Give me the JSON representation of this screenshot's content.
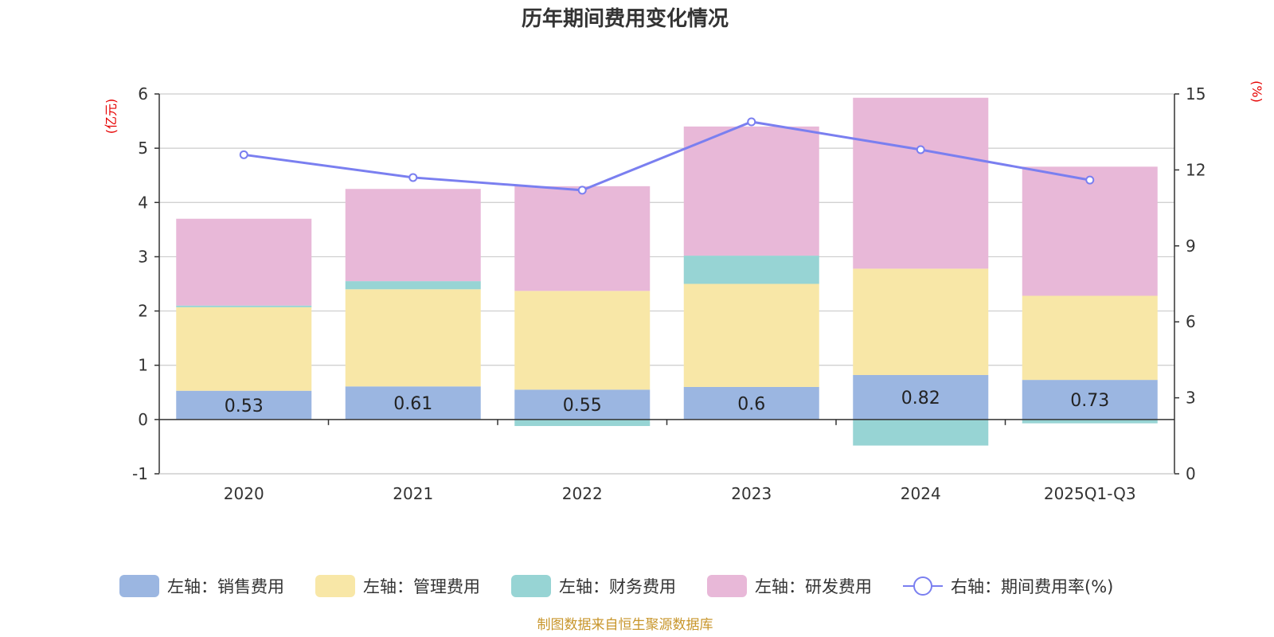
{
  "chart_data": {
    "type": "bar",
    "title": "历年期间费用变化情况",
    "categories": [
      "2020",
      "2021",
      "2022",
      "2023",
      "2024",
      "2025Q1-Q3"
    ],
    "left_axis": {
      "unit": "(亿元)",
      "ylim": [
        -1,
        6
      ],
      "ticks": [
        -1,
        0,
        1,
        2,
        3,
        4,
        5,
        6
      ]
    },
    "right_axis": {
      "unit": "(%)",
      "ylim": [
        0,
        15
      ],
      "ticks": [
        0,
        3,
        6,
        9,
        12,
        15
      ]
    },
    "series": [
      {
        "name": "左轴：销售费用",
        "type": "stacked-bar",
        "axis": "left",
        "color": "#9bb6e1",
        "values": [
          0.53,
          0.61,
          0.55,
          0.6,
          0.82,
          0.73
        ],
        "show_labels": true
      },
      {
        "name": "左轴：管理费用",
        "type": "stacked-bar",
        "axis": "left",
        "color": "#f8e7a7",
        "values": [
          1.54,
          1.79,
          1.82,
          1.9,
          1.96,
          1.55
        ]
      },
      {
        "name": "左轴：财务费用",
        "type": "stacked-bar",
        "axis": "left",
        "color": "#97d4d4",
        "values": [
          0.03,
          0.15,
          -0.12,
          0.52,
          -0.48,
          -0.07
        ]
      },
      {
        "name": "左轴：研发费用",
        "type": "stacked-bar",
        "axis": "left",
        "color": "#e8b8d8",
        "values": [
          1.6,
          1.7,
          1.93,
          2.38,
          3.15,
          2.38
        ]
      },
      {
        "name": "右轴：期间费用率(%)",
        "type": "line",
        "axis": "right",
        "color": "#7a7ff0",
        "values": [
          12.6,
          11.7,
          11.2,
          13.9,
          12.8,
          11.6
        ]
      }
    ],
    "source": "制图数据来自恒生聚源数据库"
  }
}
